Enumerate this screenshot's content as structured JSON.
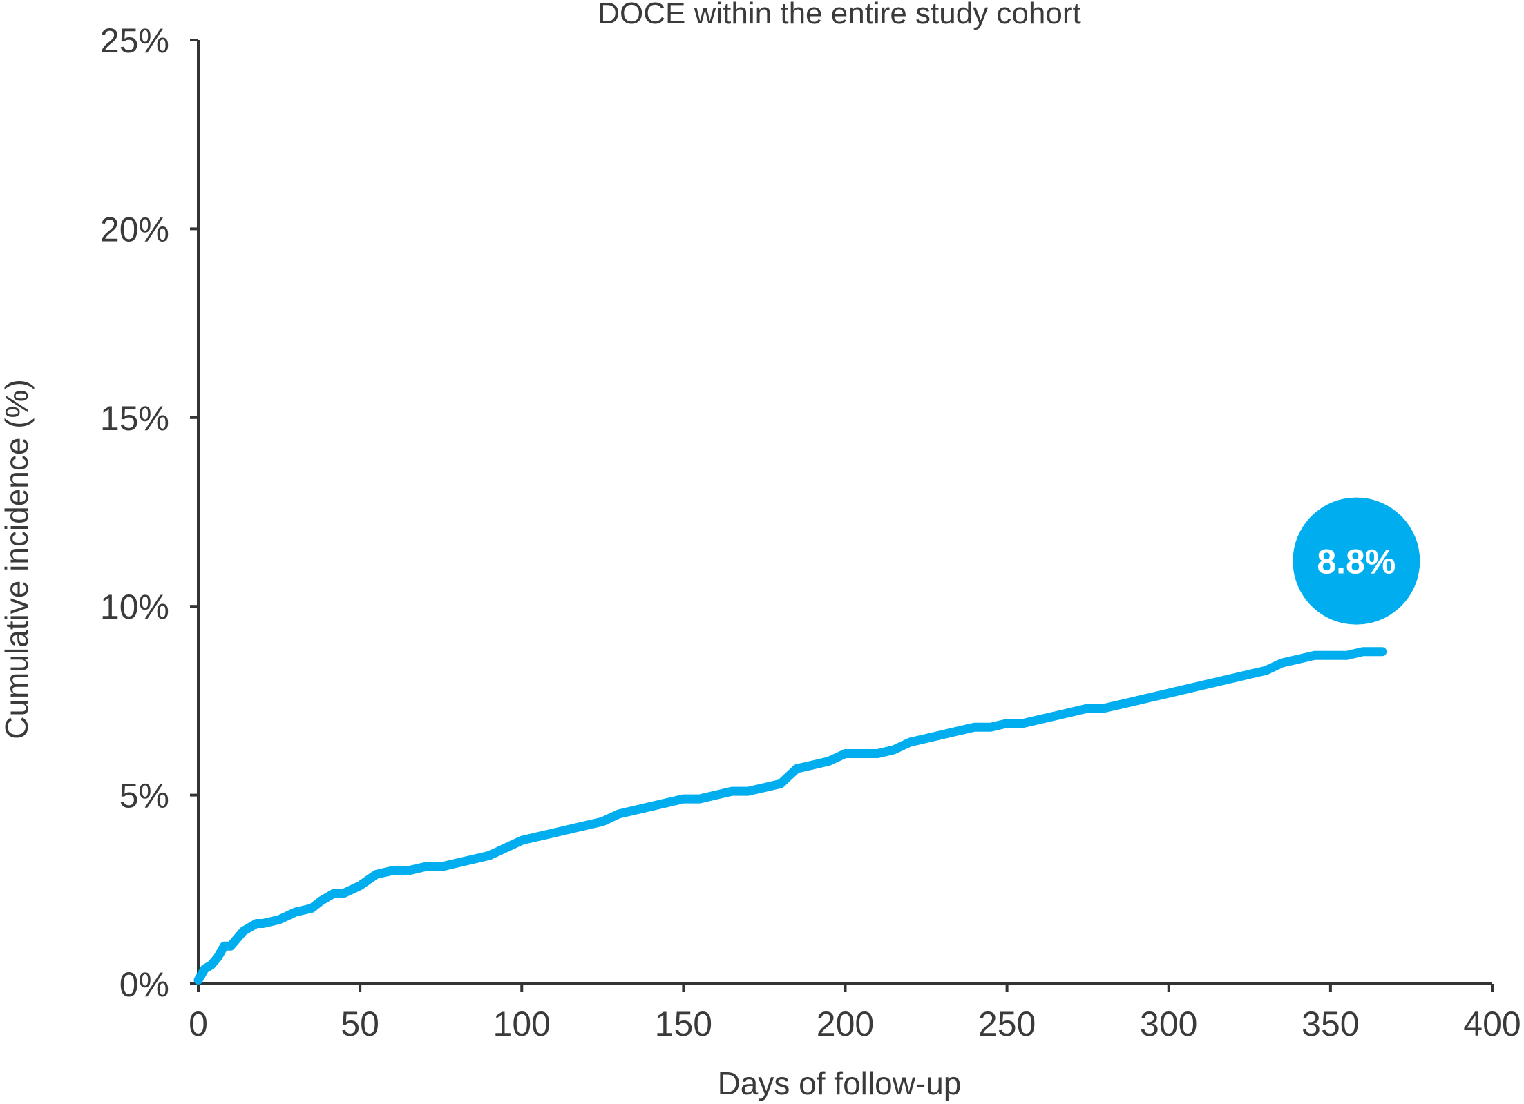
{
  "chart_data": {
    "type": "line",
    "title": "DOCE within the entire study cohort",
    "xlabel": "Days of follow-up",
    "ylabel": "Cumulative incidence (%)",
    "xlim": [
      0,
      400
    ],
    "ylim": [
      0,
      25
    ],
    "x_ticks": [
      0,
      50,
      100,
      150,
      200,
      250,
      300,
      350,
      400
    ],
    "y_ticks": [
      0,
      5,
      10,
      15,
      20,
      25
    ],
    "x_tick_labels": [
      "0",
      "50",
      "100",
      "150",
      "200",
      "250",
      "300",
      "350",
      "400"
    ],
    "y_tick_labels": [
      "0%",
      "5%",
      "10%",
      "15%",
      "20%",
      "25%"
    ],
    "grid": false,
    "legend": "none",
    "series_color": "#00aeef",
    "series": [
      {
        "x": [
          0,
          2,
          4,
          6,
          8,
          10,
          12,
          14,
          16,
          18,
          20,
          25,
          30,
          35,
          38,
          40,
          42,
          45,
          50,
          55,
          60,
          65,
          70,
          75,
          80,
          85,
          90,
          95,
          100,
          105,
          110,
          115,
          120,
          125,
          130,
          135,
          140,
          145,
          150,
          155,
          160,
          165,
          170,
          175,
          180,
          185,
          190,
          195,
          200,
          205,
          210,
          215,
          220,
          225,
          230,
          235,
          240,
          245,
          250,
          255,
          260,
          265,
          270,
          275,
          280,
          285,
          290,
          295,
          300,
          305,
          310,
          315,
          320,
          325,
          330,
          335,
          340,
          345,
          350,
          355,
          360,
          366
        ],
        "y": [
          0.1,
          0.4,
          0.5,
          0.7,
          1.0,
          1.0,
          1.2,
          1.4,
          1.5,
          1.6,
          1.6,
          1.7,
          1.9,
          2.0,
          2.2,
          2.3,
          2.4,
          2.4,
          2.6,
          2.9,
          3.0,
          3.0,
          3.1,
          3.1,
          3.2,
          3.3,
          3.4,
          3.6,
          3.8,
          3.9,
          4.0,
          4.1,
          4.2,
          4.3,
          4.5,
          4.6,
          4.7,
          4.8,
          4.9,
          4.9,
          5.0,
          5.1,
          5.1,
          5.2,
          5.3,
          5.7,
          5.8,
          5.9,
          6.1,
          6.1,
          6.1,
          6.2,
          6.4,
          6.5,
          6.6,
          6.7,
          6.8,
          6.8,
          6.9,
          6.9,
          7.0,
          7.1,
          7.2,
          7.3,
          7.3,
          7.4,
          7.5,
          7.6,
          7.7,
          7.8,
          7.9,
          8.0,
          8.1,
          8.2,
          8.3,
          8.5,
          8.6,
          8.7,
          8.7,
          8.7,
          8.8,
          8.8
        ]
      }
    ],
    "annotation": {
      "text": "8.8%",
      "x": 358,
      "y": 11.2,
      "color": "#00aeef"
    }
  }
}
